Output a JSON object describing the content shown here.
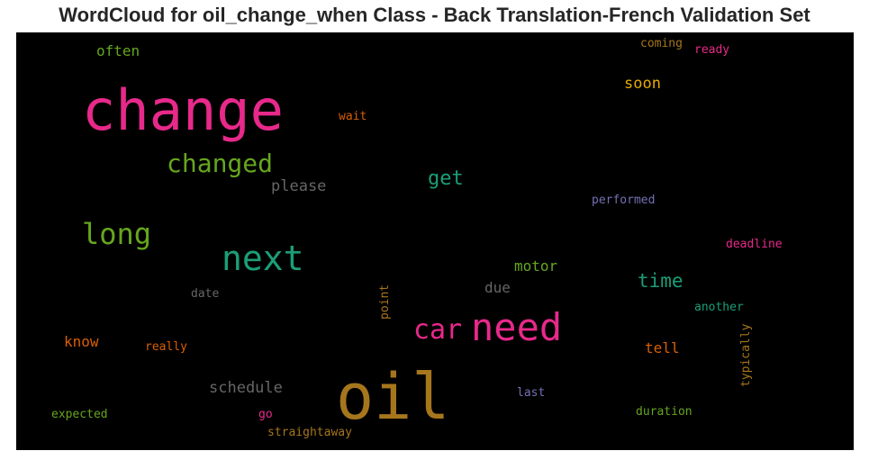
{
  "title": "WordCloud for oil_change_when Class - Back Translation-French Validation Set",
  "colors": {
    "pink": "#e7298a",
    "green": "#66a61e",
    "teal": "#1b9e77",
    "gold": "#a6761d",
    "orange": "#d95f02",
    "yellow": "#e6ab02",
    "purple": "#7570b3",
    "gray": "#666666",
    "background": "#000000"
  },
  "words": {
    "change": "change",
    "oil": "oil",
    "need": "need",
    "next": "next",
    "long": "long",
    "car": "car",
    "changed": "changed",
    "get": "get",
    "time": "time",
    "please": "please",
    "schedule": "schedule",
    "soon": "soon",
    "often": "often",
    "motor": "motor",
    "due": "due",
    "know": "know",
    "tell": "tell",
    "wait": "wait",
    "performed": "performed",
    "deadline": "deadline",
    "another": "another",
    "date": "date",
    "really": "really",
    "coming": "coming",
    "ready": "ready",
    "expected": "expected",
    "go": "go",
    "straightaway": "straightaway",
    "last": "last",
    "duration": "duration",
    "point": "point",
    "typically": "typically"
  }
}
